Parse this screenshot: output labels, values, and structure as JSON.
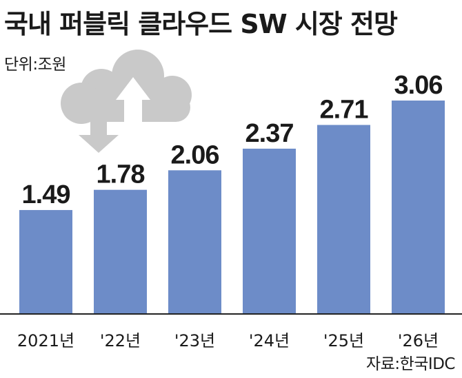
{
  "title": "국내 퍼블릭 클라우드 SW 시장 전망",
  "unit": "단위:조원",
  "source": "자료:한국IDC",
  "icon": "cloud-upload-download-icon",
  "colors": {
    "bar": "#6d8cc8",
    "icon": "#c9c9c9"
  },
  "chart_data": {
    "type": "bar",
    "title": "국내 퍼블릭 클라우드 SW 시장 전망",
    "ylabel": "단위:조원",
    "xlabel": "",
    "categories": [
      "2021년",
      "'22년",
      "'23년",
      "'24년",
      "'25년",
      "'26년"
    ],
    "values": [
      1.49,
      1.78,
      2.06,
      2.37,
      2.71,
      3.06
    ],
    "value_labels": [
      "1.49",
      "1.78",
      "2.06",
      "2.37",
      "2.71",
      "3.06"
    ],
    "ylim": [
      0,
      3.3
    ],
    "grid": false,
    "legend": "none"
  }
}
